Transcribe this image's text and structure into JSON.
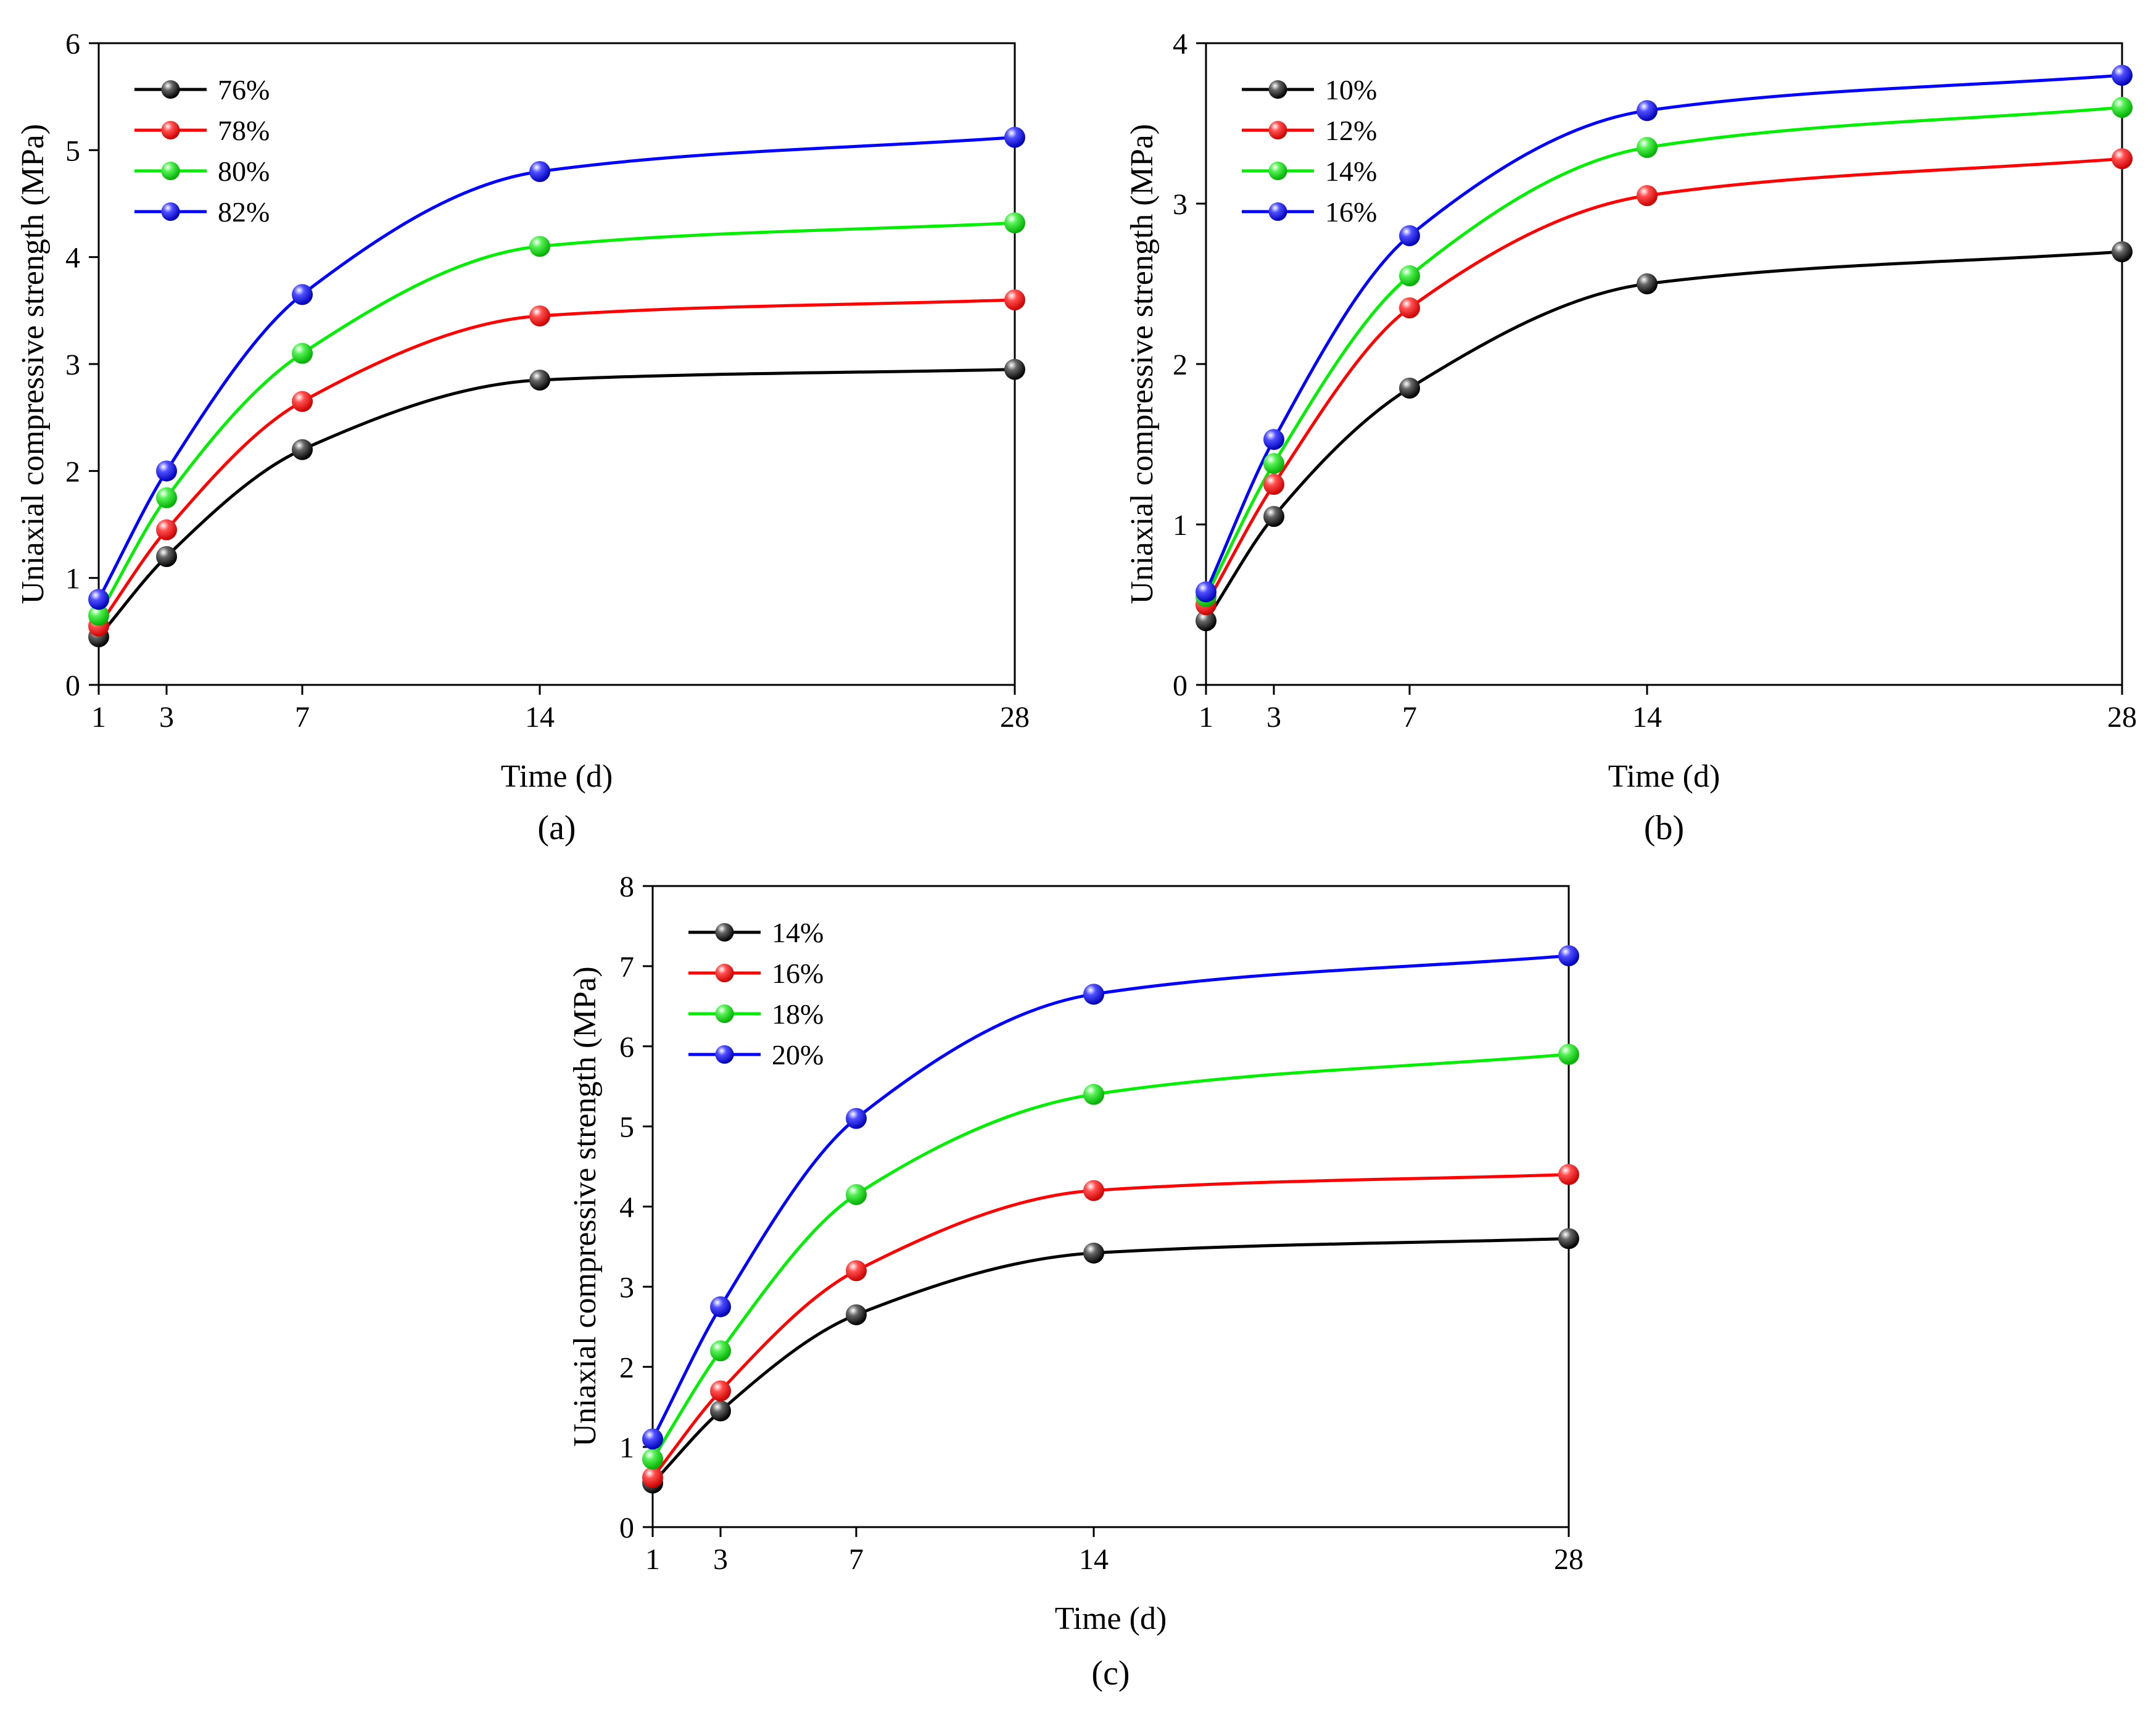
{
  "figure": {
    "background": "#ffffff",
    "series_colors": [
      "#000000",
      "#ff0000",
      "#00ee00",
      "#0000ff"
    ]
  },
  "chart_data": [
    {
      "type": "scatter",
      "panel_label": "(a)",
      "xlabel": "Time (d)",
      "ylabel": "Uniaxial compressive strength (MPa)",
      "x_ticks": [
        1,
        3,
        7,
        14,
        28
      ],
      "y_ticks": [
        0,
        1,
        2,
        3,
        4,
        5,
        6
      ],
      "xlim": [
        1,
        28
      ],
      "ylim": [
        0,
        6
      ],
      "legend_position": "top-left",
      "fit": "smooth curve",
      "x": [
        1,
        3,
        7,
        14,
        28
      ],
      "series": [
        {
          "name": "76%",
          "color": "#000000",
          "values": [
            0.45,
            1.2,
            2.2,
            2.85,
            2.95
          ]
        },
        {
          "name": "78%",
          "color": "#ff0000",
          "values": [
            0.55,
            1.45,
            2.65,
            3.45,
            3.6
          ]
        },
        {
          "name": "80%",
          "color": "#00ee00",
          "values": [
            0.65,
            1.75,
            3.1,
            4.1,
            4.32
          ]
        },
        {
          "name": "82%",
          "color": "#0000ff",
          "values": [
            0.8,
            2.0,
            3.65,
            4.8,
            5.12
          ]
        }
      ]
    },
    {
      "type": "scatter",
      "panel_label": "(b)",
      "xlabel": "Time (d)",
      "ylabel": "Uniaxial compressive strength (MPa)",
      "x_ticks": [
        1,
        3,
        7,
        14,
        28
      ],
      "y_ticks": [
        0,
        1,
        2,
        3,
        4
      ],
      "xlim": [
        1,
        28
      ],
      "ylim": [
        0,
        4
      ],
      "legend_position": "top-left",
      "fit": "smooth curve",
      "x": [
        1,
        3,
        7,
        14,
        28
      ],
      "series": [
        {
          "name": "10%",
          "color": "#000000",
          "values": [
            0.4,
            1.05,
            1.85,
            2.5,
            2.7
          ]
        },
        {
          "name": "12%",
          "color": "#ff0000",
          "values": [
            0.5,
            1.25,
            2.35,
            3.05,
            3.28
          ]
        },
        {
          "name": "14%",
          "color": "#00ee00",
          "values": [
            0.55,
            1.38,
            2.55,
            3.35,
            3.6
          ]
        },
        {
          "name": "16%",
          "color": "#0000ff",
          "values": [
            0.58,
            1.53,
            2.8,
            3.58,
            3.8
          ]
        }
      ]
    },
    {
      "type": "scatter",
      "panel_label": "(c)",
      "xlabel": "Time (d)",
      "ylabel": "Uniaxial compressive strength (MPa)",
      "x_ticks": [
        1,
        3,
        7,
        14,
        28
      ],
      "y_ticks": [
        0,
        1,
        2,
        3,
        4,
        5,
        6,
        7,
        8
      ],
      "xlim": [
        1,
        28
      ],
      "ylim": [
        0,
        8
      ],
      "legend_position": "top-left",
      "fit": "smooth curve",
      "x": [
        1,
        3,
        7,
        14,
        28
      ],
      "series": [
        {
          "name": "14%",
          "color": "#000000",
          "values": [
            0.55,
            1.45,
            2.65,
            3.42,
            3.6
          ]
        },
        {
          "name": "16%",
          "color": "#ff0000",
          "values": [
            0.62,
            1.7,
            3.2,
            4.2,
            4.4
          ]
        },
        {
          "name": "18%",
          "color": "#00ee00",
          "values": [
            0.85,
            2.2,
            4.15,
            5.4,
            5.9
          ]
        },
        {
          "name": "20%",
          "color": "#0000ff",
          "values": [
            1.1,
            2.75,
            5.1,
            6.65,
            7.13
          ]
        }
      ]
    }
  ]
}
